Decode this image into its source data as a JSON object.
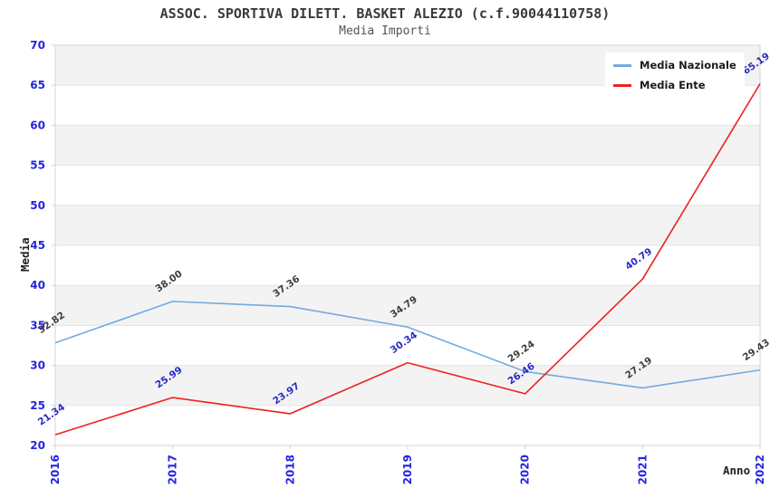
{
  "chart_data": {
    "type": "line",
    "title": "ASSOC. SPORTIVA DILETT. BASKET ALEZIO (c.f.90044110758)",
    "subtitle": "Media Importi",
    "xlabel": "Anno",
    "ylabel": "Media",
    "categories": [
      "2016",
      "2017",
      "2018",
      "2019",
      "2020",
      "2021",
      "2022"
    ],
    "ylim": [
      20,
      70
    ],
    "ytick_step": 5,
    "yticks": [
      20,
      25,
      30,
      35,
      40,
      45,
      50,
      55,
      60,
      65,
      70
    ],
    "grid": "horizontal-gridlines-with-alternating-bands",
    "legend_position": "top-right",
    "series": [
      {
        "name": "Media Nazionale",
        "color": "#74aade",
        "label_color": "#3d3d3d",
        "values": [
          32.82,
          38.0,
          37.36,
          34.79,
          29.24,
          27.19,
          29.43
        ]
      },
      {
        "name": "Media Ente",
        "color": "#ee2020",
        "label_color": "#2a2ac4",
        "values": [
          21.34,
          25.99,
          23.97,
          30.34,
          26.46,
          40.79,
          65.19
        ]
      }
    ]
  },
  "colors": {
    "tick_label": "#2424e0",
    "band_gray": "#f3f3f3",
    "gridline": "#e3e3e3",
    "plot_border": "#d4d4d4",
    "title": "#3a3a3a",
    "subtitle": "#555555",
    "axis_title": "#222222",
    "legend_background": "#ffffff"
  }
}
